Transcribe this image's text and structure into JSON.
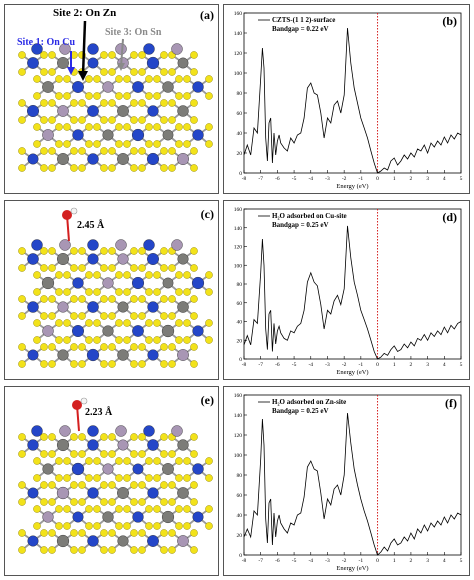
{
  "structures": [
    {
      "panel_label": "(a)",
      "site_labels": [
        {
          "text": "Site 2: On Zn",
          "color": "#000000"
        },
        {
          "text": "Site 1: On Cu",
          "color": "#2a2ae6"
        },
        {
          "text": "Site 3: On Sn",
          "color": "#8a8a8a"
        }
      ]
    },
    {
      "panel_label": "(c)",
      "distance_label": "2.45 Å"
    },
    {
      "panel_label": "(e)",
      "distance_label": "2.23 Å"
    }
  ],
  "colors": {
    "sulfur": "#f2e21a",
    "copper": "#2446c8",
    "zinc": "#7c7c78",
    "tin": "#a896b4",
    "oxygen": "#d42020",
    "hydrogen": "#f4f4f4",
    "curve": "#000000",
    "fermi": "#d42020"
  },
  "chart_data": [
    {
      "type": "line",
      "panel_label": "(b)",
      "legend": [
        "CZTS-(1 1 2)-surface",
        "Bandgap = 0.22 eV"
      ],
      "xlabel": "Energy (eV)",
      "xlim": [
        -8,
        5
      ],
      "ylim": [
        0,
        160
      ],
      "xticks": [
        "-8",
        "-7",
        "-6",
        "-5",
        "-4",
        "-3",
        "-2",
        "-1",
        "0",
        "1",
        "2",
        "3",
        "4",
        "5"
      ],
      "yticks": [
        "0",
        "20",
        "40",
        "60",
        "80",
        "100",
        "120",
        "140",
        "160"
      ],
      "fermi_level": 0,
      "x": [
        -8,
        -7.8,
        -7.6,
        -7.4,
        -7.2,
        -7.0,
        -6.9,
        -6.8,
        -6.7,
        -6.6,
        -6.5,
        -6.4,
        -6.3,
        -6.2,
        -6.1,
        -6.0,
        -5.9,
        -5.8,
        -5.6,
        -5.4,
        -5.2,
        -5.0,
        -4.8,
        -4.6,
        -4.4,
        -4.2,
        -4.0,
        -3.8,
        -3.6,
        -3.4,
        -3.2,
        -3.0,
        -2.8,
        -2.6,
        -2.4,
        -2.2,
        -2.0,
        -1.8,
        -1.6,
        -1.4,
        -1.2,
        -1.0,
        -0.8,
        -0.6,
        -0.4,
        -0.2,
        0.0,
        0.2,
        0.4,
        0.6,
        0.8,
        1.0,
        1.2,
        1.4,
        1.6,
        1.8,
        2.0,
        2.2,
        2.4,
        2.6,
        2.8,
        3.0,
        3.2,
        3.4,
        3.6,
        3.8,
        4.0,
        4.2,
        4.4,
        4.6,
        4.8,
        5.0
      ],
      "y": [
        18,
        28,
        18,
        45,
        40,
        95,
        125,
        105,
        35,
        12,
        50,
        55,
        10,
        40,
        18,
        32,
        38,
        30,
        25,
        22,
        35,
        30,
        38,
        40,
        55,
        85,
        90,
        80,
        78,
        60,
        35,
        55,
        50,
        68,
        72,
        60,
        78,
        145,
        110,
        85,
        70,
        55,
        45,
        35,
        22,
        10,
        0,
        2,
        5,
        3,
        12,
        15,
        8,
        12,
        18,
        14,
        20,
        16,
        24,
        22,
        28,
        20,
        30,
        26,
        32,
        28,
        36,
        30,
        38,
        34,
        40,
        38
      ]
    },
    {
      "type": "line",
      "panel_label": "(d)",
      "legend": [
        "H₂O adsorbed on Cu-site",
        "Bandgap = 0.25 eV"
      ],
      "xlabel": "Energy (eV)",
      "xlim": [
        -8,
        5
      ],
      "ylim": [
        0,
        160
      ],
      "xticks": [
        "-8",
        "-7",
        "-6",
        "-5",
        "-4",
        "-3",
        "-2",
        "-1",
        "0",
        "1",
        "2",
        "3",
        "4",
        "5"
      ],
      "yticks": [
        "0",
        "20",
        "40",
        "60",
        "80",
        "100",
        "120",
        "140",
        "160"
      ],
      "fermi_level": 0,
      "x": [
        -8,
        -7.8,
        -7.6,
        -7.4,
        -7.2,
        -7.0,
        -6.9,
        -6.8,
        -6.7,
        -6.6,
        -6.5,
        -6.4,
        -6.3,
        -6.2,
        -6.1,
        -6.0,
        -5.9,
        -5.8,
        -5.6,
        -5.4,
        -5.2,
        -5.0,
        -4.8,
        -4.6,
        -4.4,
        -4.2,
        -4.0,
        -3.8,
        -3.6,
        -3.4,
        -3.2,
        -3.0,
        -2.8,
        -2.6,
        -2.4,
        -2.2,
        -2.0,
        -1.8,
        -1.6,
        -1.4,
        -1.2,
        -1.0,
        -0.8,
        -0.6,
        -0.4,
        -0.2,
        0.0,
        0.2,
        0.4,
        0.6,
        0.8,
        1.0,
        1.2,
        1.4,
        1.6,
        1.8,
        2.0,
        2.2,
        2.4,
        2.6,
        2.8,
        3.0,
        3.2,
        3.4,
        3.6,
        3.8,
        4.0,
        4.2,
        4.4,
        4.6,
        4.8,
        5.0
      ],
      "y": [
        15,
        25,
        15,
        42,
        38,
        92,
        128,
        100,
        32,
        10,
        48,
        52,
        8,
        38,
        16,
        30,
        35,
        28,
        22,
        20,
        30,
        28,
        35,
        38,
        52,
        82,
        92,
        82,
        78,
        58,
        32,
        52,
        48,
        62,
        68,
        58,
        75,
        142,
        108,
        82,
        68,
        52,
        42,
        32,
        20,
        8,
        0,
        2,
        6,
        4,
        10,
        14,
        8,
        10,
        16,
        12,
        18,
        14,
        22,
        20,
        26,
        20,
        28,
        24,
        30,
        26,
        34,
        28,
        36,
        32,
        38,
        40
      ]
    },
    {
      "type": "line",
      "panel_label": "(f)",
      "legend": [
        "H₂O adsorbed on Zn-site",
        "Bandgap = 0.25 eV"
      ],
      "xlabel": "Energy (eV)",
      "xlim": [
        -8,
        5
      ],
      "ylim": [
        0,
        160
      ],
      "xticks": [
        "-8",
        "-7",
        "-6",
        "-5",
        "-4",
        "-3",
        "-2",
        "-1",
        "0",
        "1",
        "2",
        "3",
        "4",
        "5"
      ],
      "yticks": [
        "0",
        "20",
        "40",
        "60",
        "80",
        "100",
        "120",
        "140",
        "160"
      ],
      "fermi_level": 0,
      "x": [
        -8,
        -7.8,
        -7.6,
        -7.4,
        -7.2,
        -7.0,
        -6.9,
        -6.8,
        -6.7,
        -6.6,
        -6.5,
        -6.4,
        -6.3,
        -6.2,
        -6.1,
        -6.0,
        -5.9,
        -5.8,
        -5.6,
        -5.4,
        -5.2,
        -5.0,
        -4.8,
        -4.6,
        -4.4,
        -4.2,
        -4.0,
        -3.8,
        -3.6,
        -3.4,
        -3.2,
        -3.0,
        -2.8,
        -2.6,
        -2.4,
        -2.2,
        -2.0,
        -1.8,
        -1.6,
        -1.4,
        -1.2,
        -1.0,
        -0.8,
        -0.6,
        -0.4,
        -0.2,
        0.0,
        0.2,
        0.4,
        0.6,
        0.8,
        1.0,
        1.2,
        1.4,
        1.6,
        1.8,
        2.0,
        2.2,
        2.4,
        2.6,
        2.8,
        3.0,
        3.2,
        3.4,
        3.6,
        3.8,
        4.0,
        4.2,
        4.4,
        4.6,
        4.8,
        5.0
      ],
      "y": [
        18,
        26,
        18,
        44,
        40,
        96,
        136,
        110,
        36,
        12,
        52,
        56,
        10,
        42,
        18,
        34,
        40,
        32,
        26,
        22,
        32,
        30,
        40,
        42,
        58,
        88,
        94,
        86,
        84,
        62,
        36,
        56,
        50,
        66,
        70,
        60,
        80,
        142,
        112,
        86,
        70,
        56,
        44,
        34,
        22,
        10,
        0,
        3,
        8,
        4,
        12,
        16,
        10,
        12,
        18,
        14,
        22,
        16,
        26,
        22,
        30,
        24,
        32,
        28,
        34,
        30,
        38,
        32,
        40,
        36,
        42,
        40
      ]
    }
  ]
}
